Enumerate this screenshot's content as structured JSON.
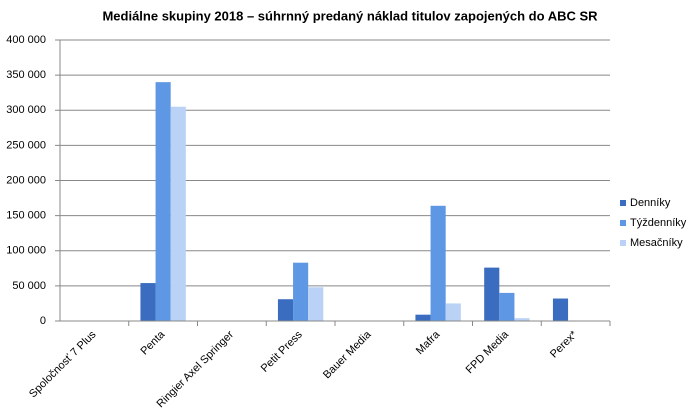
{
  "chart_data": {
    "type": "bar",
    "title": "Mediálne skupiny 2018 – súhrnný predaný náklad titulov zapojených do ABC SR",
    "categories": [
      "Spoločnosť 7 Plus",
      "Penta",
      "Ringier Axel Springer",
      "Petit Press",
      "Bauer Media",
      "Mafra",
      "FPD Media",
      "Perex*"
    ],
    "series": [
      {
        "name": "Denníky",
        "color": "#3a6cbf",
        "values": [
          0,
          54000,
          0,
          31000,
          0,
          9000,
          76000,
          32000
        ]
      },
      {
        "name": "Týždenníky",
        "color": "#5e97e3",
        "values": [
          0,
          340000,
          0,
          83000,
          0,
          164000,
          40000,
          0
        ]
      },
      {
        "name": "Mesačníky",
        "color": "#b9d2f5",
        "values": [
          0,
          305000,
          0,
          48000,
          0,
          25000,
          4000,
          0
        ]
      }
    ],
    "ylim": [
      0,
      400000
    ],
    "yticks": [
      {
        "value": 0,
        "label": "0"
      },
      {
        "value": 50000,
        "label": "50 000"
      },
      {
        "value": 100000,
        "label": "100 000"
      },
      {
        "value": 150000,
        "label": "150 000"
      },
      {
        "value": 200000,
        "label": "200 000"
      },
      {
        "value": 250000,
        "label": "250 000"
      },
      {
        "value": 300000,
        "label": "300 000"
      },
      {
        "value": 350000,
        "label": "350 000"
      },
      {
        "value": 400000,
        "label": "400 000"
      }
    ],
    "grid": true,
    "legend": "right"
  }
}
